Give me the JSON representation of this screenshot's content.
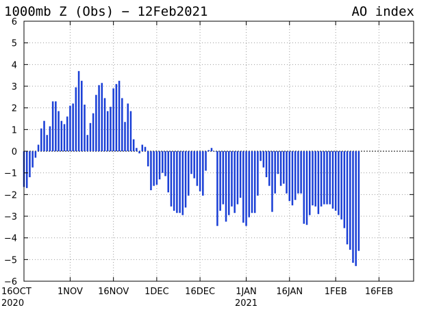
{
  "chart_data": {
    "type": "bar",
    "title": "1000mb Z (Obs) − 12Feb2021",
    "title_right": "AO index",
    "xlabel": "",
    "ylabel": "",
    "ylim": [
      -6,
      6
    ],
    "yticks": [
      "6",
      "5",
      "4",
      "3",
      "2",
      "1",
      "0",
      "−1",
      "−2",
      "−3",
      "−4",
      "−5",
      "−6"
    ],
    "x_start": "2020-10-16",
    "x_end": "2021-02-28",
    "xtick_labels": [
      {
        "line1": "16OCT",
        "line2": "2020"
      },
      {
        "line1": "1NOV",
        "line2": ""
      },
      {
        "line1": "16NOV",
        "line2": ""
      },
      {
        "line1": "1DEC",
        "line2": ""
      },
      {
        "line1": "16DEC",
        "line2": ""
      },
      {
        "line1": "1JAN",
        "line2": "2021"
      },
      {
        "line1": "16JAN",
        "line2": ""
      },
      {
        "line1": "1FEB",
        "line2": ""
      },
      {
        "line1": "16FEB",
        "line2": ""
      }
    ],
    "grid": true,
    "bar_color": "#1a3fd6",
    "series": [
      {
        "values": [
          -1.65,
          -1.7,
          -1.2,
          -0.75,
          -0.3,
          0.3,
          1.05,
          1.4,
          0.75,
          1.15,
          2.3,
          2.3,
          1.85,
          1.4,
          1.25,
          1.6,
          2.1,
          2.2,
          2.95,
          3.7,
          3.25,
          2.15,
          0.75,
          1.3,
          1.75,
          2.6,
          3.05,
          3.15,
          2.45,
          1.85,
          2.05,
          2.9,
          3.1,
          3.25,
          2.45,
          1.35,
          2.2,
          1.85,
          0.55,
          0.15,
          -0.1,
          0.3,
          0.2,
          -0.7,
          -1.8,
          -1.6,
          -1.55,
          -1.3,
          -1.0,
          -1.15,
          -1.9,
          -2.55,
          -2.75,
          -2.85,
          -2.85,
          -2.95,
          -2.6,
          -2.05,
          -1.05,
          -1.25,
          -1.6,
          -1.85,
          -2.05,
          -0.9,
          0.05,
          0.15,
          0.0,
          -3.45,
          -2.75,
          -2.45,
          -3.25,
          -2.95,
          -2.55,
          -2.85,
          -2.45,
          -2.15,
          -3.3,
          -3.45,
          -3.05,
          -2.85,
          -2.85,
          -2.05,
          -0.45,
          -0.75,
          -1.2,
          -1.6,
          -2.8,
          -1.95,
          -1.05,
          -1.6,
          -1.5,
          -1.95,
          -2.3,
          -2.5,
          -2.25,
          -1.95,
          -1.95,
          -3.35,
          -3.4,
          -2.95,
          -2.5,
          -2.55,
          -2.9,
          -2.55,
          -2.45,
          -2.45,
          -2.45,
          -2.65,
          -2.75,
          -2.95,
          -3.15,
          -3.55,
          -4.3,
          -4.55,
          -5.15,
          -5.3,
          -4.6
        ]
      }
    ]
  }
}
